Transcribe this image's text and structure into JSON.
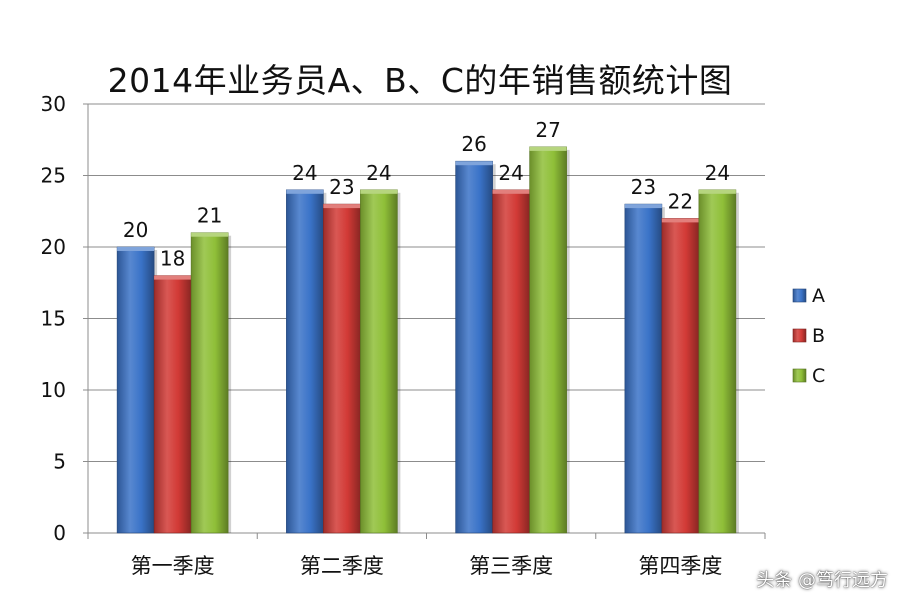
{
  "chart_data": {
    "type": "bar",
    "title": "2014年业务员A、B、C的年销售额统计图",
    "categories": [
      "第一季度",
      "第二季度",
      "第三季度",
      "第四季度"
    ],
    "series": [
      {
        "name": "A",
        "values": [
          20,
          24,
          26,
          23
        ],
        "color": "#3a73c8"
      },
      {
        "name": "B",
        "values": [
          18,
          23,
          24,
          22
        ],
        "color": "#d23a36"
      },
      {
        "name": "C",
        "values": [
          21,
          24,
          27,
          24
        ],
        "color": "#8fbf38"
      }
    ],
    "yticks": [
      0,
      5,
      10,
      15,
      20,
      25,
      30
    ],
    "ylim": [
      0,
      30
    ],
    "grid": true,
    "legend": "right",
    "data_labels": true
  },
  "watermark": "头条 @笃行远方"
}
